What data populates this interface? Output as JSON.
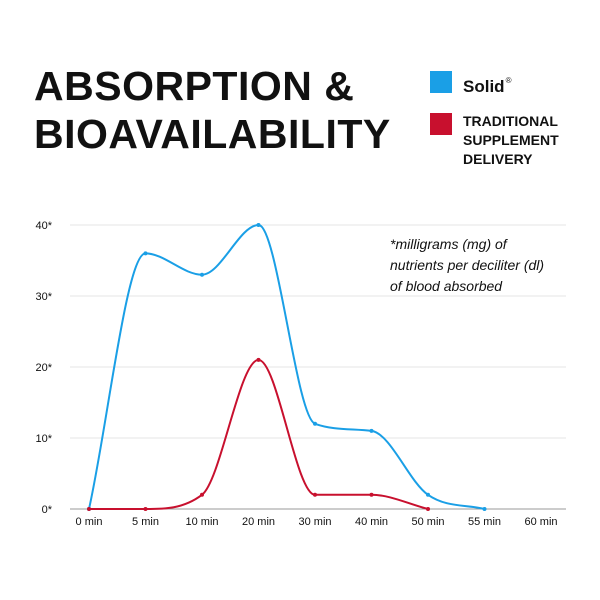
{
  "title_lines": [
    "ABSORPTION &",
    "BIOAVAILABILITY"
  ],
  "legend": {
    "solid": {
      "label": "Solid",
      "mark": "®",
      "color": "#1a9fe6"
    },
    "traditional": {
      "lines": [
        "TRADITIONAL",
        "SUPPLEMENT",
        "DELIVERY"
      ],
      "color": "#c8102e"
    }
  },
  "note_lines": [
    "*milligrams (mg) of",
    "nutrients per deciliter (dl)",
    "of blood absorbed"
  ],
  "chart_data": {
    "type": "line",
    "categories": [
      "0 min",
      "5 min",
      "10 min",
      "20 min",
      "30 min",
      "40 min",
      "50 min",
      "55 min",
      "60 min"
    ],
    "y_tick_labels": [
      "0*",
      "10*",
      "20*",
      "30*",
      "40*"
    ],
    "y_ticks": [
      0,
      10,
      20,
      30,
      40
    ],
    "ylim": [
      0,
      40
    ],
    "grid": true,
    "smooth": true,
    "series": [
      {
        "name": "Solid",
        "color": "#1a9fe6",
        "values": [
          0,
          36,
          33,
          40,
          12,
          11,
          2,
          0,
          null
        ]
      },
      {
        "name": "TRADITIONAL SUPPLEMENT DELIVERY",
        "color": "#c8102e",
        "values": [
          0,
          0,
          2,
          21,
          2,
          2,
          0,
          null,
          null
        ]
      }
    ]
  }
}
